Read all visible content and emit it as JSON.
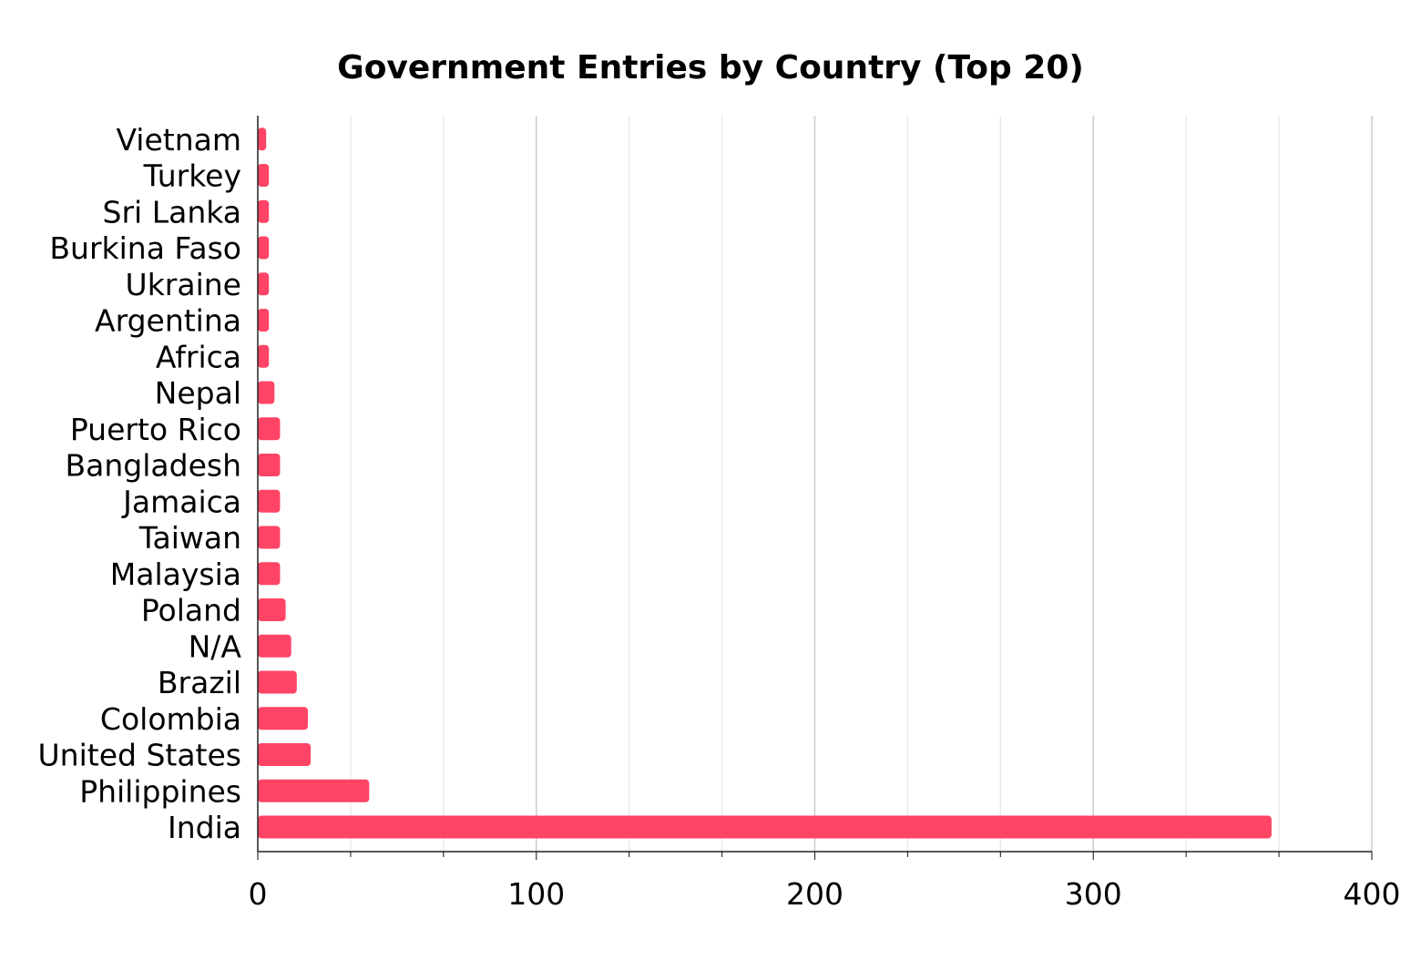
{
  "chart_data": {
    "type": "bar",
    "orientation": "horizontal",
    "title": "Government Entries by Country (Top 20)",
    "xlabel": "",
    "ylabel": "",
    "xlim": [
      0,
      400
    ],
    "x_ticks": [
      0,
      100,
      200,
      300,
      400
    ],
    "x_tick_labels": [
      "0",
      "100",
      "200",
      "300",
      "400"
    ],
    "grid": "vertical",
    "legend": "none",
    "bar_color": "#ff4466",
    "categories": [
      "India",
      "Philippines",
      "United States",
      "Colombia",
      "Brazil",
      "N/A",
      "Poland",
      "Malaysia",
      "Taiwan",
      "Jamaica",
      "Bangladesh",
      "Puerto Rico",
      "Nepal",
      "Africa",
      "Argentina",
      "Ukraine",
      "Burkina Faso",
      "Sri Lanka",
      "Turkey",
      "Vietnam"
    ],
    "values": [
      364,
      40,
      19,
      18,
      14,
      12,
      10,
      8,
      8,
      8,
      8,
      8,
      6,
      4,
      4,
      4,
      4,
      4,
      4,
      3
    ]
  }
}
